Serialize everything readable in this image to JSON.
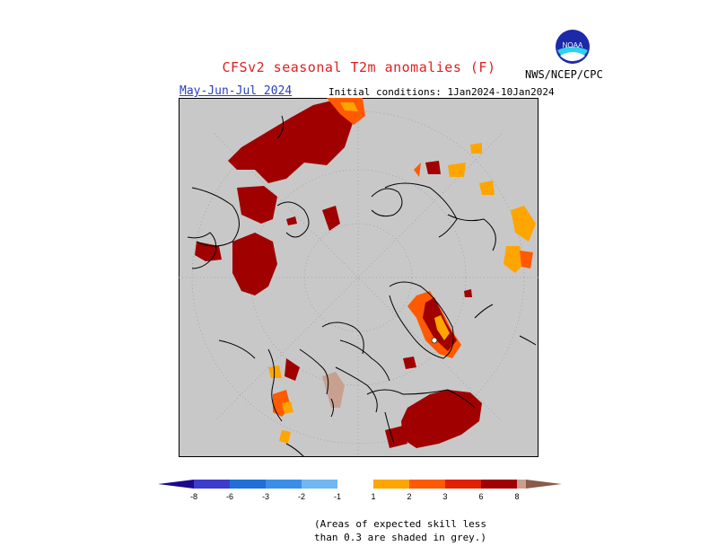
{
  "title": "CFSv2 seasonal T2m anomalies (F)",
  "period": "May-Jun-Jul 2024",
  "initial_conditions": "Initial conditions: 1Jan2024-10Jan2024",
  "agency": "NWS/NCEP/CPC",
  "logo_text": "NOAA",
  "legend": {
    "labels": [
      "-8",
      "-6",
      "-3",
      "-2",
      "-1",
      "1",
      "2",
      "3",
      "6",
      "8"
    ],
    "colors": [
      "#1a0a8c",
      "#3d3dcc",
      "#1f6fd6",
      "#3a8ee8",
      "#6fb6f2",
      "#ffffff",
      "#ffa500",
      "#ff5a00",
      "#e02000",
      "#a00000",
      "#c8a090",
      "#8a5a4a"
    ]
  },
  "note_line1": "(Areas of expected skill less",
  "note_line2": "than 0.3 are shaded in grey.)"
}
